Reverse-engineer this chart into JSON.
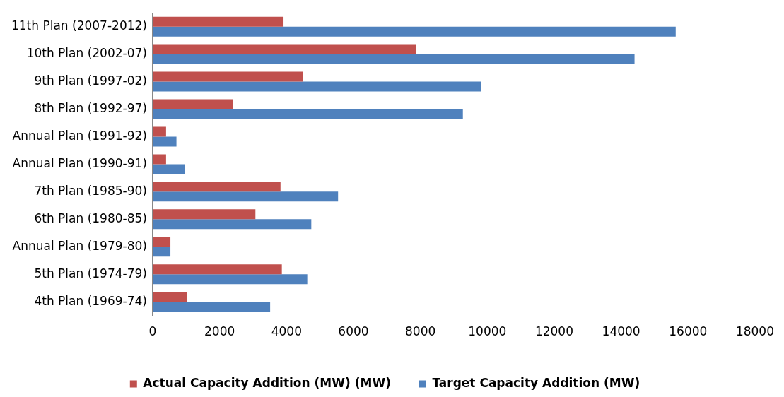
{
  "chart_data": {
    "type": "bar",
    "orientation": "horizontal",
    "categories": [
      "11th Plan (2007-2012)",
      "10th Plan (2002-07)",
      "9th Plan (1997-02)",
      "8th Plan (1992-97)",
      "Annual Plan (1991-92)",
      "Annual Plan (1990-91)",
      "7th Plan (1985-90)",
      "6th Plan (1980-85)",
      "Annual Plan (1979-80)",
      "5th Plan (1974-79)",
      "4th Plan (1969-74)"
    ],
    "series": [
      {
        "name": "Actual Capacity Addition (MW) (MW)",
        "color": "#c0504d",
        "values": [
          3910,
          7870,
          4500,
          2400,
          400,
          400,
          3820,
          3070,
          530,
          3860,
          1030
        ]
      },
      {
        "name": "Target Capacity Addition (MW)",
        "color": "#4f81bd",
        "values": [
          15630,
          14400,
          9820,
          9270,
          710,
          970,
          5540,
          4740,
          530,
          4620,
          3510
        ]
      }
    ],
    "xlim": [
      0,
      18000
    ],
    "xticks": [
      0,
      2000,
      4000,
      6000,
      8000,
      10000,
      12000,
      14000,
      16000,
      18000
    ],
    "grid": false,
    "legend": "bottom"
  }
}
